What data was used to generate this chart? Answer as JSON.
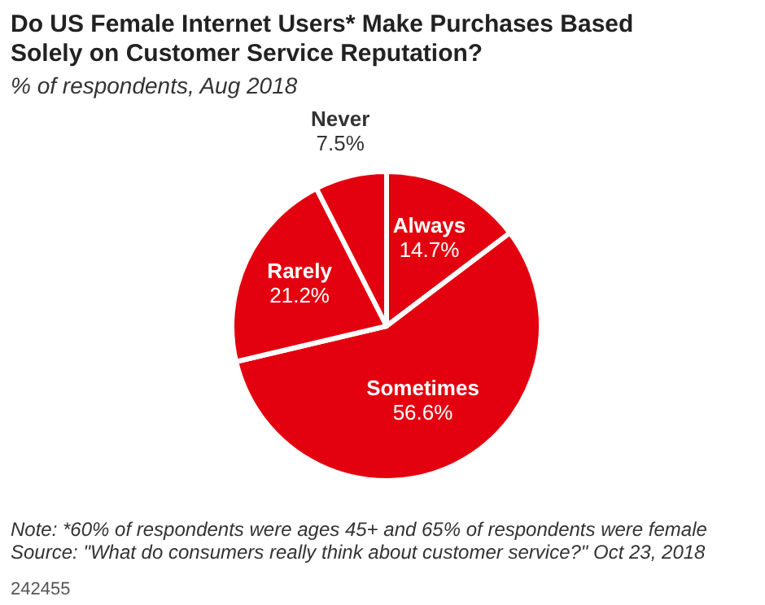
{
  "chart_data": {
    "type": "pie",
    "title": "Do US Female Internet Users* Make Purchases Based Solely on Customer Service Reputation?",
    "subtitle": "% of respondents, Aug 2018",
    "categories": [
      "Always",
      "Sometimes",
      "Rarely",
      "Never"
    ],
    "values": [
      14.7,
      56.6,
      21.2,
      7.5
    ],
    "value_labels": [
      "14.7%",
      "56.6%",
      "21.2%",
      "7.5%"
    ],
    "colors": [
      "#e3000f",
      "#e3000f",
      "#e3000f",
      "#e3000f"
    ],
    "annotations": [
      "Note: *60% of respondents were ages 45+ and 65% of respondents were female",
      "Source: \"What do consumers really think about customer service?\" Oct 23, 2018",
      "242455"
    ]
  }
}
